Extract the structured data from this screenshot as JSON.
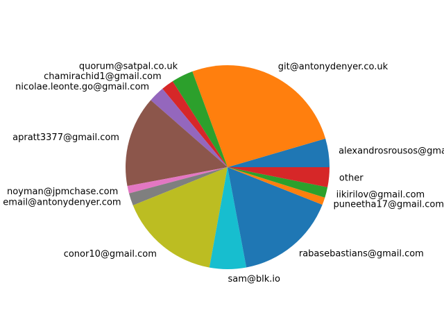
{
  "chart_data": {
    "type": "pie",
    "title": "",
    "start_angle_deg": 0,
    "direction": "counterclockwise",
    "slices": [
      {
        "label": "alexandrosrousos@gmail.com",
        "value": 4.6,
        "color": "#1f77b4"
      },
      {
        "label": "git@antonydenyer.co.uk",
        "value": 26.5,
        "color": "#ff7f0e"
      },
      {
        "label": "quorum@satpal.co.uk",
        "value": 3.5,
        "color": "#2ca02c"
      },
      {
        "label": "chamirachid1@gmail.com",
        "value": 2.0,
        "color": "#d62728"
      },
      {
        "label": "nicolae.leonte.go@gmail.com",
        "value": 2.6,
        "color": "#9467bd"
      },
      {
        "label": "apratt3377@gmail.com",
        "value": 14.6,
        "color": "#8c564b"
      },
      {
        "label": "noyman@jpmchase.com",
        "value": 1.2,
        "color": "#e377c2"
      },
      {
        "label": "email@antonydenyer.com",
        "value": 2.0,
        "color": "#7f7f7f"
      },
      {
        "label": "conor10@gmail.com",
        "value": 16.3,
        "color": "#bcbd22"
      },
      {
        "label": "sam@blk.io",
        "value": 5.9,
        "color": "#17becf"
      },
      {
        "label": "rabasebastians@gmail.com",
        "value": 16.3,
        "color": "#1f77b4"
      },
      {
        "label": "puneetha17@gmail.com",
        "value": 1.2,
        "color": "#ff7f0e"
      },
      {
        "label": "iikirilov@gmail.com",
        "value": 1.7,
        "color": "#2ca02c"
      },
      {
        "label": "other",
        "value": 3.2,
        "color": "#d62728"
      }
    ]
  }
}
